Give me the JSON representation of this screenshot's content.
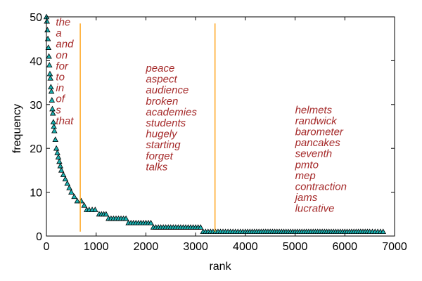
{
  "chart_data": {
    "type": "scatter",
    "title": "",
    "xlabel": "rank",
    "ylabel": "frequency",
    "xlim": [
      0,
      7000
    ],
    "ylim": [
      0,
      50
    ],
    "xticks": [
      0,
      1000,
      2000,
      3000,
      4000,
      5000,
      6000,
      7000
    ],
    "yticks": [
      0,
      10,
      20,
      30,
      40,
      50
    ],
    "grid": false,
    "legend": "none",
    "marker": "triangle",
    "colors": {
      "marker_fill": "#1ab2b2",
      "marker_edge": "#000000",
      "vline": "#ff9900",
      "word": "#a52a2a"
    },
    "series": [
      {
        "x": [
          1,
          10,
          20,
          30,
          40,
          50,
          60,
          70,
          80,
          90,
          100,
          110,
          120,
          130,
          140,
          150,
          160,
          180,
          200,
          220,
          240,
          260,
          280,
          300,
          340,
          380,
          420,
          460,
          500,
          560,
          620,
          700,
          760,
          860,
          980,
          1060,
          1200,
          1300,
          1500,
          1600,
          1700,
          1800,
          2000,
          2100,
          2200,
          2400,
          2600,
          2800,
          3000,
          3100,
          3200,
          3600,
          4000,
          4500,
          5000,
          5500,
          6000,
          6500,
          6770
        ],
        "y": [
          50,
          49,
          47,
          45,
          43,
          41,
          39,
          37,
          36,
          34,
          33,
          31,
          29,
          28,
          26,
          25,
          24,
          22,
          20,
          19,
          18,
          17,
          16,
          15,
          14,
          13,
          12,
          11,
          10,
          9,
          8,
          8,
          7,
          6,
          6,
          5,
          5,
          4,
          4,
          4,
          3,
          3,
          3,
          3,
          2,
          2,
          2,
          2,
          2,
          2,
          1,
          1,
          1,
          1,
          1,
          1,
          1,
          1,
          1
        ]
      }
    ],
    "vlines": [
      680,
      3390
    ],
    "word_groups": [
      {
        "x": 190,
        "y_top": 48,
        "words": [
          "the",
          "a",
          "and",
          "on",
          "for",
          "to",
          "in",
          "of",
          "s",
          "that"
        ]
      },
      {
        "x": 2000,
        "y_top": 37.5,
        "words": [
          "peace",
          "aspect",
          "audience",
          "broken",
          "academies",
          "students",
          "hugely",
          "starting",
          "forget",
          "talks"
        ]
      },
      {
        "x": 5000,
        "y_top": 28,
        "words": [
          "helmets",
          "randwick",
          "barometer",
          "pancakes",
          "seventh",
          "pmto",
          "mep",
          "contraction",
          "jams",
          "lucrative"
        ]
      }
    ]
  }
}
